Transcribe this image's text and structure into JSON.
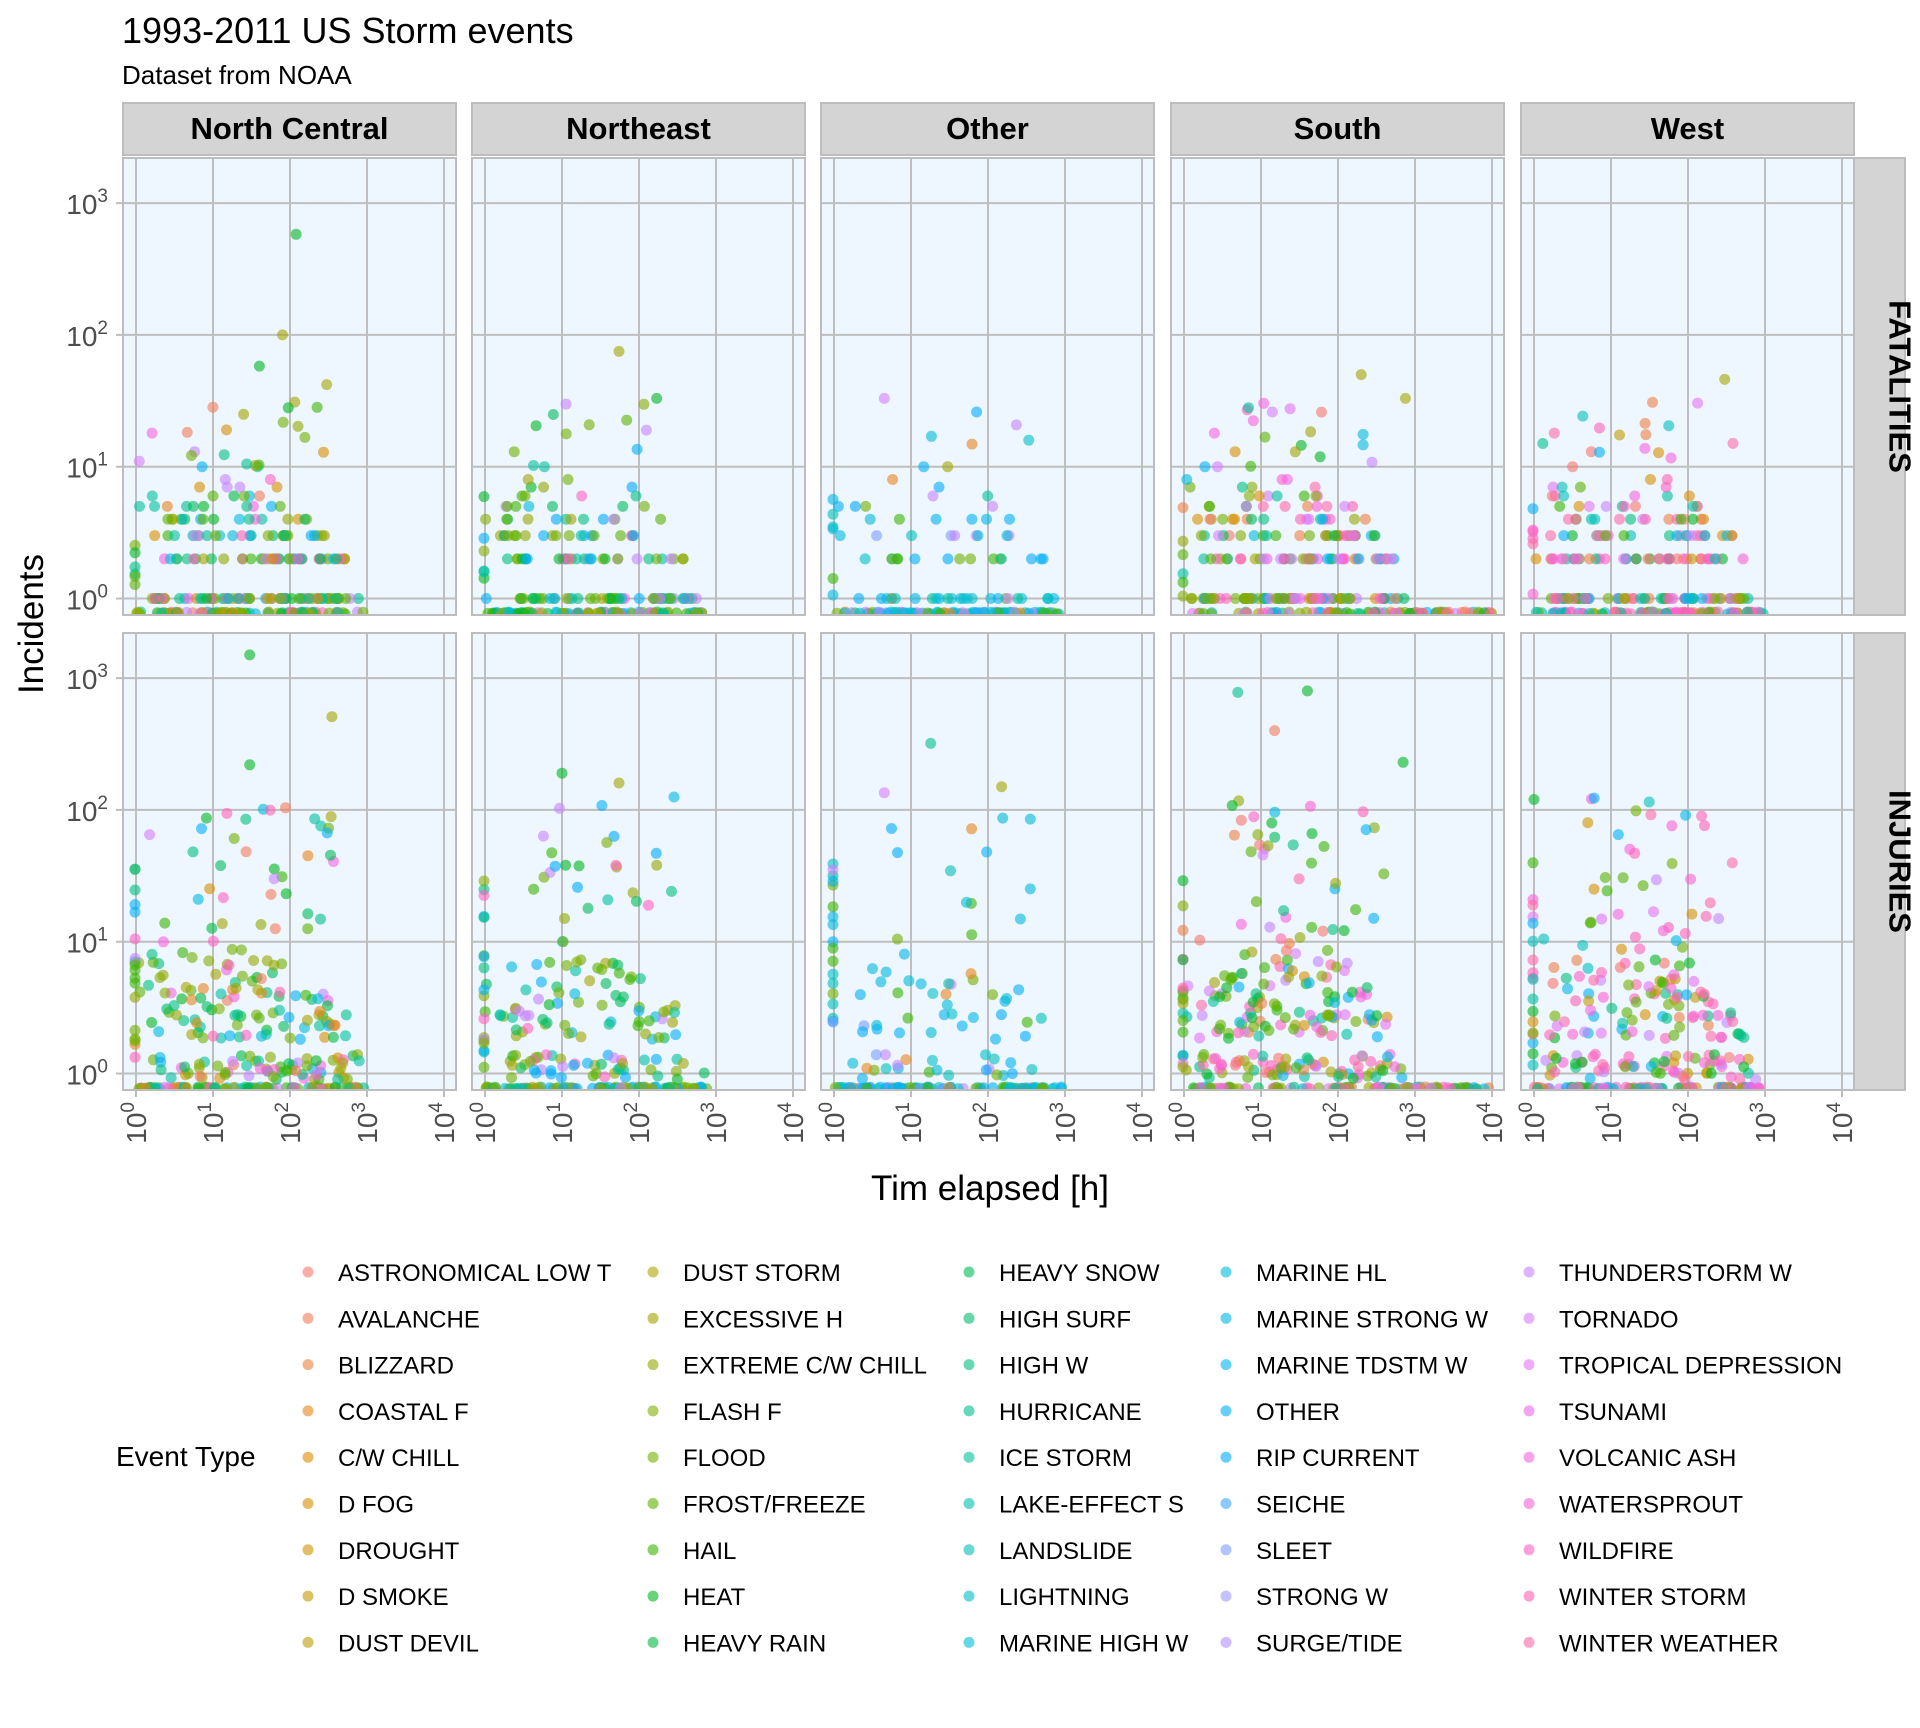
{
  "header": {
    "title": "1993-2011 US Storm events",
    "subtitle": "Dataset from NOAA"
  },
  "chart_data": {
    "type": "scatter",
    "title": "1993-2011 US Storm events",
    "subtitle": "Dataset from NOAA",
    "xlabel": "Tim elapsed [h]",
    "ylabel": "Incidents",
    "x_scale": "log10",
    "y_scale": "log10",
    "xlim": [
      1,
      10000
    ],
    "ylim": [
      0.75,
      2200
    ],
    "x_ticks": [
      "10^0",
      "10^1",
      "10^2",
      "10^3",
      "10^4"
    ],
    "y_ticks": [
      "10^0",
      "10^1",
      "10^2",
      "10^3"
    ],
    "grid": true,
    "panel_background": "#eef6ff",
    "strip_background": "#d4d4d4",
    "columns": [
      "North Central",
      "Northeast",
      "Other",
      "South",
      "West"
    ],
    "rows": [
      "FATALITIES",
      "INJURIES"
    ],
    "legend": {
      "title": "Event Type",
      "position": "bottom",
      "labels": [
        "ASTRONOMICAL LOW T",
        "AVALANCHE",
        "BLIZZARD",
        "COASTAL F",
        "C/W CHILL",
        "D FOG",
        "DROUGHT",
        "D SMOKE",
        "DUST DEVIL",
        "DUST STORM",
        "EXCESSIVE H",
        "EXTREME C/W CHILL",
        "FLASH F",
        "FLOOD",
        "FROST/FREEZE",
        "HAIL",
        "HEAT",
        "HEAVY RAIN",
        "HEAVY SNOW",
        "HIGH SURF",
        "HIGH W",
        "HURRICANE",
        "ICE STORM",
        "LAKE-EFFECT S",
        "LANDSLIDE",
        "LIGHTNING",
        "MARINE HIGH W",
        "MARINE HL",
        "MARINE STRONG W",
        "MARINE TDSTM W",
        "OTHER",
        "RIP CURRENT",
        "SEICHE",
        "SLEET",
        "STRONG W",
        "SURGE/TIDE",
        "THUNDERSTORM W",
        "TORNADO",
        "TROPICAL DEPRESSION",
        "TSUNAMI",
        "VOLCANIC ASH",
        "WATERSPROUT",
        "WILDFIRE",
        "WINTER STORM",
        "WINTER WEATHER"
      ],
      "colors": [
        "#f8766d",
        "#f37b59",
        "#ed8141",
        "#e7861b",
        "#e08b00",
        "#d89000",
        "#cf9400",
        "#c59900",
        "#bb9d00",
        "#b0a100",
        "#a3a500",
        "#95a900",
        "#85ad00",
        "#72b000",
        "#5bb300",
        "#39b600",
        "#00b81f",
        "#00ba42",
        "#00bc59",
        "#00bd6d",
        "#00bf7f",
        "#00c08f",
        "#00c19f",
        "#00c1ad",
        "#00c0bb",
        "#00bfc7",
        "#00bdd3",
        "#00bbdd",
        "#00b8e7",
        "#00b4f0",
        "#00b0f6",
        "#00abfd",
        "#3ca6ff",
        "#7c9fff",
        "#9c98ff",
        "#b290ff",
        "#c683ff",
        "#d77dff",
        "#e673f3",
        "#ef67eb",
        "#f763e0",
        "#fc61d3",
        "#ff61c5",
        "#ff63b6",
        "#ff69a6"
      ]
    },
    "highlight_points": [
      {
        "region": "North Central",
        "measure": "FATALITIES",
        "x": 120,
        "y": 580,
        "type": "HEAT"
      },
      {
        "region": "North Central",
        "measure": "FATALITIES",
        "x": 80,
        "y": 100,
        "type": "EXCESSIVE H"
      },
      {
        "region": "North Central",
        "measure": "FATALITIES",
        "x": 40,
        "y": 58,
        "type": "HEAT"
      },
      {
        "region": "North Central",
        "measure": "FATALITIES",
        "x": 300,
        "y": 42,
        "type": "EXCESSIVE H"
      },
      {
        "region": "North Central",
        "measure": "FATALITIES",
        "x": 95,
        "y": 28,
        "type": "HEAT"
      },
      {
        "region": "North Central",
        "measure": "FATALITIES",
        "x": 25,
        "y": 25,
        "type": "EXCESSIVE H"
      },
      {
        "region": "North Central",
        "measure": "FATALITIES",
        "x": 1.1,
        "y": 11,
        "type": "TORNADO"
      },
      {
        "region": "North Central",
        "measure": "INJURIES",
        "x": 30,
        "y": 1500,
        "type": "HEAT"
      },
      {
        "region": "North Central",
        "measure": "INJURIES",
        "x": 350,
        "y": 510,
        "type": "EXCESSIVE H"
      },
      {
        "region": "North Central",
        "measure": "INJURIES",
        "x": 30,
        "y": 220,
        "type": "HEAT"
      },
      {
        "region": "North Central",
        "measure": "INJURIES",
        "x": 1.5,
        "y": 65,
        "type": "TORNADO"
      },
      {
        "region": "Northeast",
        "measure": "FATALITIES",
        "x": 55,
        "y": 75,
        "type": "EXCESSIVE H"
      },
      {
        "region": "Northeast",
        "measure": "FATALITIES",
        "x": 170,
        "y": 33,
        "type": "HEAT"
      },
      {
        "region": "Northeast",
        "measure": "INJURIES",
        "x": 10,
        "y": 190,
        "type": "HEAT"
      },
      {
        "region": "Northeast",
        "measure": "INJURIES",
        "x": 55,
        "y": 160,
        "type": "EXCESSIVE H"
      },
      {
        "region": "Other",
        "measure": "FATALITIES",
        "x": 4.5,
        "y": 33,
        "type": "TORNADO"
      },
      {
        "region": "Other",
        "measure": "FATALITIES",
        "x": 30,
        "y": 10,
        "type": "EXCESSIVE H"
      },
      {
        "region": "Other",
        "measure": "INJURIES",
        "x": 18,
        "y": 320,
        "type": "HURRICANE"
      },
      {
        "region": "Other",
        "measure": "INJURIES",
        "x": 4.5,
        "y": 135,
        "type": "TORNADO"
      },
      {
        "region": "Other",
        "measure": "INJURIES",
        "x": 150,
        "y": 150,
        "type": "EXCESSIVE H"
      },
      {
        "region": "South",
        "measure": "FATALITIES",
        "x": 200,
        "y": 50,
        "type": "EXCESSIVE H"
      },
      {
        "region": "South",
        "measure": "FATALITIES",
        "x": 750,
        "y": 33,
        "type": "EXCESSIVE H"
      },
      {
        "region": "South",
        "measure": "FATALITIES",
        "x": 14,
        "y": 26,
        "type": "TORNADO"
      },
      {
        "region": "South",
        "measure": "INJURIES",
        "x": 40,
        "y": 800,
        "type": "HEAT"
      },
      {
        "region": "South",
        "measure": "INJURIES",
        "x": 5,
        "y": 780,
        "type": "HURRICANE"
      },
      {
        "region": "South",
        "measure": "INJURIES",
        "x": 15,
        "y": 400,
        "type": "AVALANCHE"
      },
      {
        "region": "South",
        "measure": "INJURIES",
        "x": 700,
        "y": 230,
        "type": "HEAT"
      },
      {
        "region": "West",
        "measure": "FATALITIES",
        "x": 300,
        "y": 46,
        "type": "EXCESSIVE H"
      },
      {
        "region": "West",
        "measure": "FATALITIES",
        "x": 1.3,
        "y": 15,
        "type": "HURRICANE"
      },
      {
        "region": "West",
        "measure": "INJURIES",
        "x": 150,
        "y": 90,
        "type": "WINTER STORM"
      },
      {
        "region": "West",
        "measure": "INJURIES",
        "x": 1,
        "y": 120,
        "type": "HEAT"
      },
      {
        "region": "West",
        "measure": "INJURIES",
        "x": 5,
        "y": 80,
        "type": "DROUGHT"
      }
    ]
  }
}
